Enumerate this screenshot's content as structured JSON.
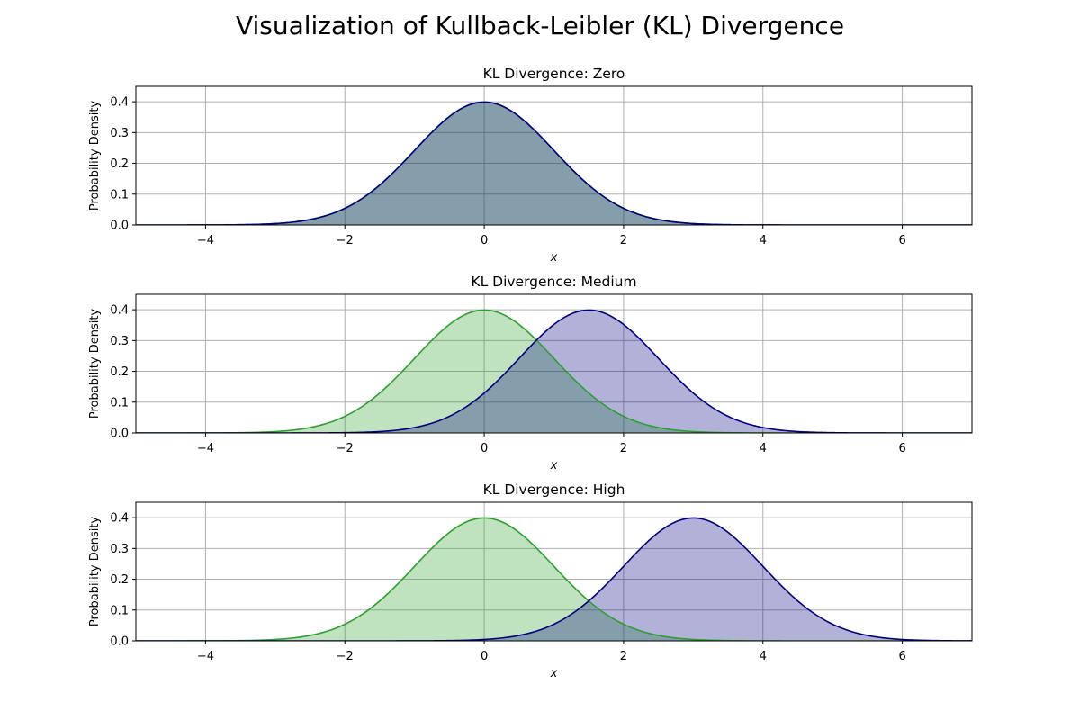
{
  "figure": {
    "title": "Visualization of Kullback-Leibler (KL) Divergence"
  },
  "chart_data": [
    {
      "type": "area",
      "title": "KL Divergence: Zero",
      "xlabel": "x",
      "ylabel": "Probability Density",
      "xlim": [
        -5,
        7
      ],
      "ylim": [
        0,
        0.45
      ],
      "xticks": [
        "−4",
        "−2",
        "0",
        "2",
        "4",
        "6"
      ],
      "yticks": [
        "0.0",
        "0.1",
        "0.2",
        "0.3",
        "0.4"
      ],
      "grid": true,
      "series": [
        {
          "mean": 0,
          "std": 1,
          "color": "#2ca02c"
        },
        {
          "mean": 0,
          "std": 1,
          "color": "#000080"
        }
      ]
    },
    {
      "type": "area",
      "title": "KL Divergence: Medium",
      "xlabel": "x",
      "ylabel": "Probability Density",
      "xlim": [
        -5,
        7
      ],
      "ylim": [
        0,
        0.45
      ],
      "xticks": [
        "−4",
        "−2",
        "0",
        "2",
        "4",
        "6"
      ],
      "yticks": [
        "0.0",
        "0.1",
        "0.2",
        "0.3",
        "0.4"
      ],
      "grid": true,
      "series": [
        {
          "mean": 0,
          "std": 1,
          "color": "#2ca02c"
        },
        {
          "mean": 1.5,
          "std": 1,
          "color": "#000080"
        }
      ]
    },
    {
      "type": "area",
      "title": "KL Divergence: High",
      "xlabel": "x",
      "ylabel": "Probability Density",
      "xlim": [
        -5,
        7
      ],
      "ylim": [
        0,
        0.45
      ],
      "xticks": [
        "−4",
        "−2",
        "0",
        "2",
        "4",
        "6"
      ],
      "yticks": [
        "0.0",
        "0.1",
        "0.2",
        "0.3",
        "0.4"
      ],
      "grid": true,
      "series": [
        {
          "mean": 0,
          "std": 1,
          "color": "#2ca02c"
        },
        {
          "mean": 3,
          "std": 1,
          "color": "#000080"
        }
      ]
    }
  ]
}
